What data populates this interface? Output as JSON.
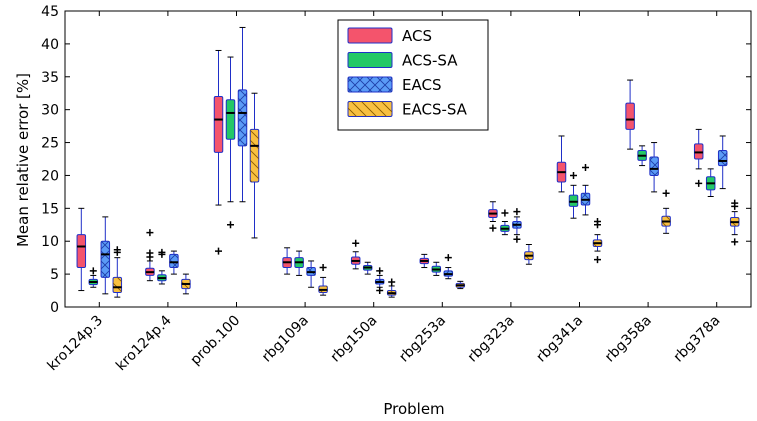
{
  "chart_data": {
    "type": "boxplot",
    "title": "",
    "xlabel": "Problem",
    "ylabel": "Mean relative error [%]",
    "ylim": [
      0,
      45
    ],
    "yticks": [
      0,
      5,
      10,
      15,
      20,
      25,
      30,
      35,
      40,
      45
    ],
    "grid": false,
    "legend_position": "top-center",
    "categories": [
      "kro124p.3",
      "kro124p.4",
      "prob.100",
      "rbg109a",
      "rbg150a",
      "rbg253a",
      "rbg323a",
      "rbg341a",
      "rbg358a",
      "rbg378a"
    ],
    "series": [
      {
        "name": "ACS",
        "color": "#f4546c",
        "pattern": "solid",
        "boxes": [
          {
            "whislo": 2.5,
            "q1": 6.0,
            "med": 9.2,
            "q3": 11.0,
            "whishi": 15.0,
            "fliers": []
          },
          {
            "whislo": 4.0,
            "q1": 4.8,
            "med": 5.3,
            "q3": 5.9,
            "whishi": 7.0,
            "fliers": [
              7.6,
              8.2,
              11.3
            ]
          },
          {
            "whislo": 15.5,
            "q1": 23.5,
            "med": 28.5,
            "q3": 32.0,
            "whishi": 39.0,
            "fliers": [
              8.5
            ]
          },
          {
            "whislo": 5.0,
            "q1": 6.0,
            "med": 6.8,
            "q3": 7.5,
            "whishi": 9.0,
            "fliers": []
          },
          {
            "whislo": 5.8,
            "q1": 6.5,
            "med": 7.0,
            "q3": 7.6,
            "whishi": 8.4,
            "fliers": [
              9.7
            ]
          },
          {
            "whislo": 6.0,
            "q1": 6.6,
            "med": 7.0,
            "q3": 7.4,
            "whishi": 8.0,
            "fliers": []
          },
          {
            "whislo": 13.0,
            "q1": 13.6,
            "med": 14.2,
            "q3": 14.8,
            "whishi": 16.0,
            "fliers": [
              12.0
            ]
          },
          {
            "whislo": 17.5,
            "q1": 19.0,
            "med": 20.5,
            "q3": 22.0,
            "whishi": 26.0,
            "fliers": []
          },
          {
            "whislo": 24.0,
            "q1": 27.0,
            "med": 28.5,
            "q3": 31.0,
            "whishi": 34.5,
            "fliers": []
          },
          {
            "whislo": 21.0,
            "q1": 22.5,
            "med": 23.5,
            "q3": 24.8,
            "whishi": 27.0,
            "fliers": [
              18.8
            ]
          }
        ]
      },
      {
        "name": "ACS-SA",
        "color": "#24c866",
        "pattern": "solid",
        "boxes": [
          {
            "whislo": 3.0,
            "q1": 3.4,
            "med": 3.8,
            "q3": 4.2,
            "whishi": 4.8,
            "fliers": [
              5.5
            ]
          },
          {
            "whislo": 3.5,
            "q1": 4.0,
            "med": 4.4,
            "q3": 4.9,
            "whishi": 5.5,
            "fliers": [
              8.0,
              8.3
            ]
          },
          {
            "whislo": 16.0,
            "q1": 25.5,
            "med": 29.5,
            "q3": 31.5,
            "whishi": 38.0,
            "fliers": [
              12.5
            ]
          },
          {
            "whislo": 4.8,
            "q1": 6.0,
            "med": 6.8,
            "q3": 7.5,
            "whishi": 8.5,
            "fliers": []
          },
          {
            "whislo": 5.0,
            "q1": 5.6,
            "med": 6.0,
            "q3": 6.3,
            "whishi": 6.8,
            "fliers": []
          },
          {
            "whislo": 4.8,
            "q1": 5.3,
            "med": 5.7,
            "q3": 6.2,
            "whishi": 6.8,
            "fliers": []
          },
          {
            "whislo": 11.0,
            "q1": 11.5,
            "med": 11.9,
            "q3": 12.4,
            "whishi": 13.0,
            "fliers": [
              14.3
            ]
          },
          {
            "whislo": 13.5,
            "q1": 15.3,
            "med": 16.0,
            "q3": 17.0,
            "whishi": 18.5,
            "fliers": [
              20.0
            ]
          },
          {
            "whislo": 21.5,
            "q1": 22.3,
            "med": 23.0,
            "q3": 23.8,
            "whishi": 24.5,
            "fliers": []
          },
          {
            "whislo": 16.8,
            "q1": 17.8,
            "med": 18.8,
            "q3": 19.8,
            "whishi": 21.0,
            "fliers": []
          }
        ]
      },
      {
        "name": "EACS",
        "color": "#5b9bf6",
        "pattern": "crosshatch",
        "boxes": [
          {
            "whislo": 2.0,
            "q1": 4.5,
            "med": 8.0,
            "q3": 10.0,
            "whishi": 13.7,
            "fliers": []
          },
          {
            "whislo": 5.0,
            "q1": 6.0,
            "med": 6.8,
            "q3": 8.0,
            "whishi": 8.5,
            "fliers": []
          },
          {
            "whislo": 16.0,
            "q1": 24.5,
            "med": 29.5,
            "q3": 33.0,
            "whishi": 42.5,
            "fliers": []
          },
          {
            "whislo": 3.0,
            "q1": 4.8,
            "med": 5.3,
            "q3": 6.0,
            "whishi": 7.0,
            "fliers": []
          },
          {
            "whislo": 3.0,
            "q1": 3.5,
            "med": 3.8,
            "q3": 4.2,
            "whishi": 4.8,
            "fliers": [
              2.5,
              5.5
            ]
          },
          {
            "whislo": 4.3,
            "q1": 4.7,
            "med": 5.0,
            "q3": 5.5,
            "whishi": 6.0,
            "fliers": [
              7.5
            ]
          },
          {
            "whislo": 11.0,
            "q1": 12.0,
            "med": 12.5,
            "q3": 13.0,
            "whishi": 13.7,
            "fliers": [
              10.3,
              14.5
            ]
          },
          {
            "whislo": 14.0,
            "q1": 15.5,
            "med": 16.3,
            "q3": 17.3,
            "whishi": 18.5,
            "fliers": [
              21.2
            ]
          },
          {
            "whislo": 17.5,
            "q1": 20.0,
            "med": 21.0,
            "q3": 22.8,
            "whishi": 25.0,
            "fliers": []
          },
          {
            "whislo": 18.0,
            "q1": 21.5,
            "med": 22.2,
            "q3": 23.8,
            "whishi": 26.0,
            "fliers": []
          }
        ]
      },
      {
        "name": "EACS-SA",
        "color": "#f8c040",
        "pattern": "diagonal",
        "boxes": [
          {
            "whislo": 1.5,
            "q1": 2.2,
            "med": 3.0,
            "q3": 4.5,
            "whishi": 7.5,
            "fliers": [
              8.3,
              8.7
            ]
          },
          {
            "whislo": 2.0,
            "q1": 2.8,
            "med": 3.5,
            "q3": 4.2,
            "whishi": 5.0,
            "fliers": []
          },
          {
            "whislo": 10.5,
            "q1": 19.0,
            "med": 24.5,
            "q3": 27.0,
            "whishi": 32.5,
            "fliers": []
          },
          {
            "whislo": 1.8,
            "q1": 2.2,
            "med": 2.6,
            "q3": 3.2,
            "whishi": 4.5,
            "fliers": [
              6.0
            ]
          },
          {
            "whislo": 1.5,
            "q1": 1.8,
            "med": 2.1,
            "q3": 2.5,
            "whishi": 3.2,
            "fliers": [
              3.8
            ]
          },
          {
            "whislo": 2.8,
            "q1": 3.0,
            "med": 3.3,
            "q3": 3.6,
            "whishi": 3.9,
            "fliers": []
          },
          {
            "whislo": 6.5,
            "q1": 7.2,
            "med": 7.8,
            "q3": 8.4,
            "whishi": 9.5,
            "fliers": []
          },
          {
            "whislo": 8.5,
            "q1": 9.2,
            "med": 9.7,
            "q3": 10.2,
            "whishi": 11.0,
            "fliers": [
              7.2,
              12.5,
              13.0
            ]
          },
          {
            "whislo": 11.2,
            "q1": 12.3,
            "med": 13.0,
            "q3": 13.8,
            "whishi": 15.0,
            "fliers": [
              17.3
            ]
          },
          {
            "whislo": 11.0,
            "q1": 12.3,
            "med": 12.9,
            "q3": 13.6,
            "whishi": 14.5,
            "fliers": [
              9.9,
              15.3,
              15.8
            ]
          }
        ]
      }
    ]
  }
}
